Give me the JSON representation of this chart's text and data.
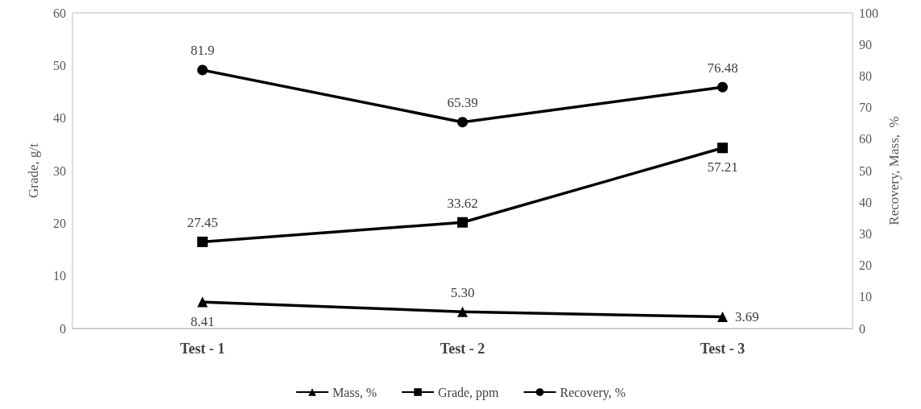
{
  "chart_data": {
    "type": "line",
    "categories": [
      "Test - 1",
      "Test - 2",
      "Test - 3"
    ],
    "ylabel": "Grade, g/t",
    "y2label": "Recovery, Mass,  %",
    "ylim": [
      0,
      60
    ],
    "yticks": [
      0,
      10,
      20,
      30,
      40,
      50,
      60
    ],
    "y2lim": [
      0,
      100
    ],
    "y2ticks": [
      0,
      10,
      20,
      30,
      40,
      50,
      60,
      70,
      80,
      90,
      100
    ],
    "grid": false,
    "legend": "bottom",
    "series": [
      {
        "name": "Mass, %",
        "color": "#000000",
        "axis": "y2",
        "marker": "triangle",
        "values": [
          8.41,
          5.3,
          3.69
        ],
        "value_labels": [
          "8.41",
          "5.30",
          "3.69"
        ]
      },
      {
        "name": "Grade, ppm",
        "color": "#000000",
        "axis": "y2",
        "marker": "square",
        "values": [
          27.45,
          33.62,
          57.21
        ],
        "value_labels": [
          "27.45",
          "33.62",
          "57.21"
        ]
      },
      {
        "name": "Recovery, %",
        "color": "#000000",
        "axis": "y2",
        "marker": "circle",
        "values": [
          81.9,
          65.39,
          76.48
        ],
        "value_labels": [
          "81.9",
          "65.39",
          "76.48"
        ]
      }
    ]
  }
}
